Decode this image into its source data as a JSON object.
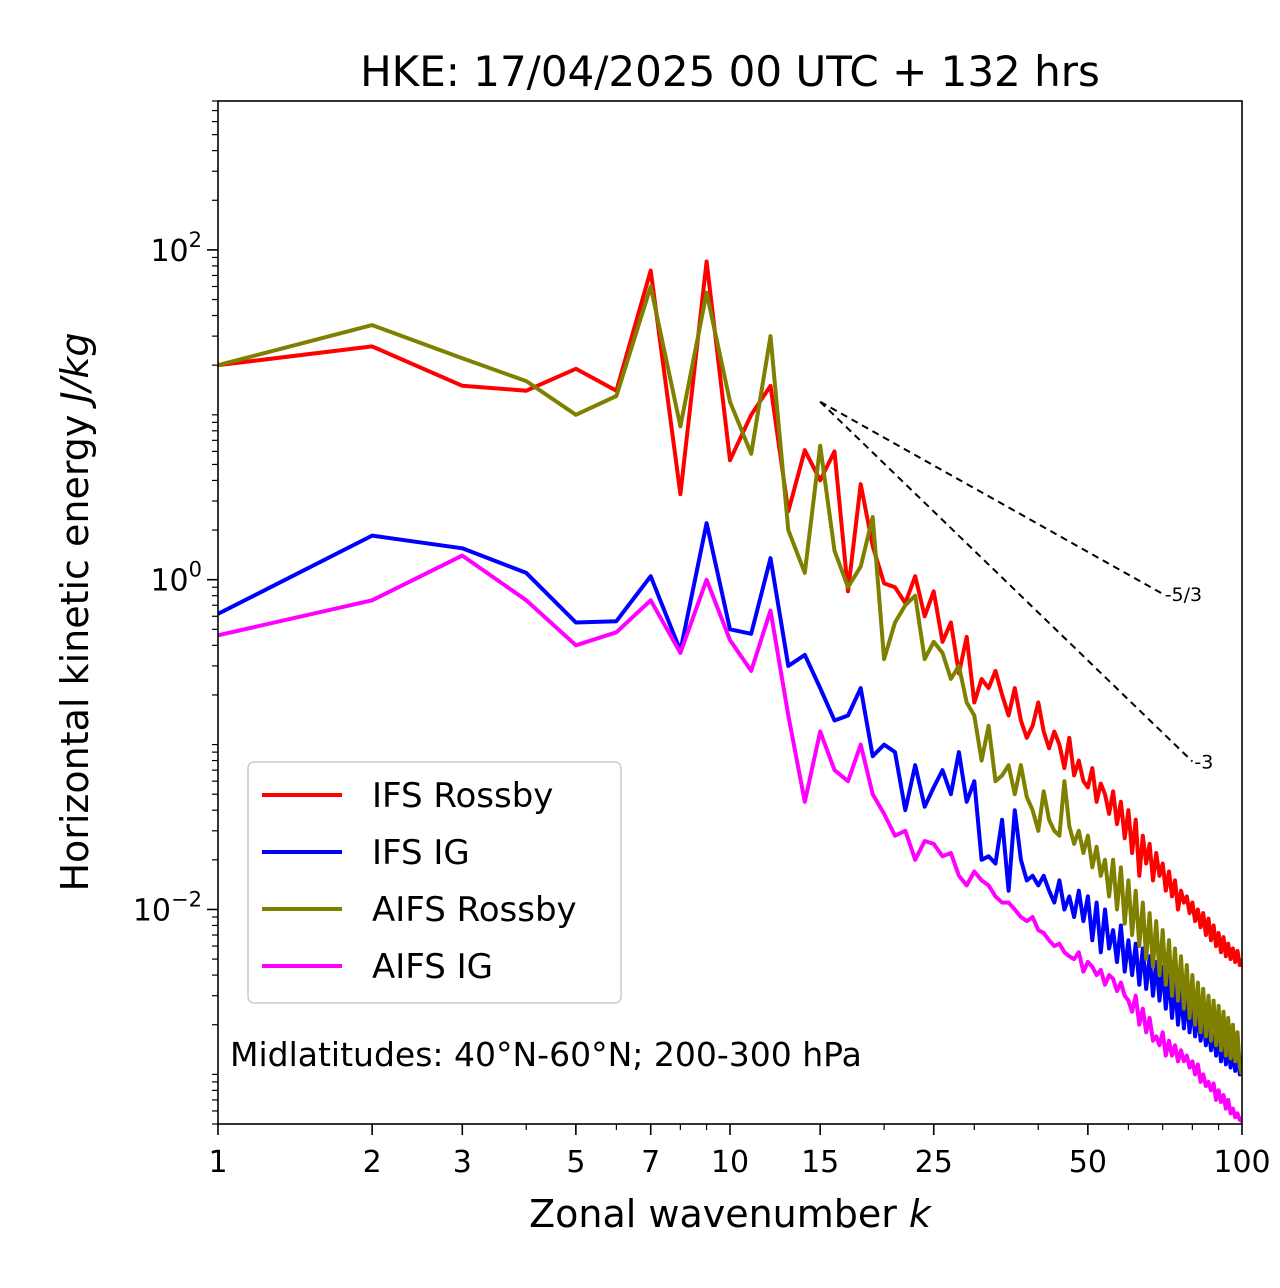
{
  "chart_data": {
    "type": "line",
    "title": "HKE: 17/04/2025 00 UTC + 132 hrs",
    "xlabel": "Zonal wavenumber",
    "xlabel_symbol": "k",
    "ylabel": "Horizontal kinetic energy",
    "ylabel_unit": "J/kg",
    "xscale": "log",
    "yscale": "log",
    "xlim": [
      1,
      100
    ],
    "ylim": [
      0.0005,
      800
    ],
    "xticks": [
      1,
      2,
      3,
      5,
      7,
      10,
      15,
      25,
      50,
      100
    ],
    "xtick_labels": [
      "1",
      "2",
      "3",
      "5",
      "7",
      "10",
      "15",
      "25",
      "50",
      "100"
    ],
    "yticks": [
      0.01,
      1,
      100
    ],
    "ytick_base": "10",
    "ytick_exponents": [
      "−2",
      "0",
      "2"
    ],
    "legend_position": "lower-left",
    "annotation": "Midlatitudes: 40°N-60°N; 200-300 hPa",
    "reference_lines": [
      {
        "label": "-5/3",
        "x": [
          15,
          70
        ],
        "y": [
          12,
          0.82
        ],
        "style": "dashed"
      },
      {
        "label": "-3",
        "x": [
          15,
          80
        ],
        "y": [
          12,
          0.079
        ],
        "style": "dashed"
      }
    ],
    "series": [
      {
        "name": "IFS Rossby",
        "color": "#ff0000",
        "x": [
          1,
          2,
          3,
          4,
          5,
          6,
          7,
          8,
          9,
          10,
          11,
          12,
          13,
          14,
          15,
          16,
          17,
          18,
          19,
          20,
          21,
          22,
          23,
          24,
          25,
          26,
          27,
          28,
          29,
          30,
          31,
          32,
          33,
          34,
          35,
          36,
          37,
          38,
          39,
          40,
          41,
          42,
          43,
          44,
          45,
          46,
          47,
          48,
          49,
          50,
          51,
          52,
          53,
          54,
          55,
          56,
          57,
          58,
          59,
          60,
          61,
          62,
          63,
          64,
          65,
          66,
          67,
          68,
          69,
          70,
          71,
          72,
          73,
          74,
          75,
          76,
          77,
          78,
          79,
          80,
          81,
          82,
          83,
          84,
          85,
          86,
          87,
          88,
          89,
          90,
          91,
          92,
          93,
          94,
          95,
          96,
          97,
          98,
          99,
          100
        ],
        "y": [
          20,
          26,
          15,
          14,
          19,
          14,
          75,
          3.3,
          85,
          5.3,
          10,
          15,
          2.6,
          6.1,
          4.0,
          6.0,
          0.85,
          3.8,
          1.6,
          0.95,
          0.9,
          0.72,
          1.05,
          0.6,
          0.85,
          0.42,
          0.55,
          0.27,
          0.45,
          0.18,
          0.25,
          0.22,
          0.28,
          0.2,
          0.15,
          0.22,
          0.14,
          0.11,
          0.13,
          0.18,
          0.12,
          0.095,
          0.12,
          0.1,
          0.072,
          0.11,
          0.065,
          0.08,
          0.06,
          0.055,
          0.072,
          0.045,
          0.058,
          0.05,
          0.038,
          0.052,
          0.033,
          0.045,
          0.027,
          0.04,
          0.022,
          0.035,
          0.016,
          0.028,
          0.019,
          0.025,
          0.015,
          0.022,
          0.016,
          0.019,
          0.013,
          0.017,
          0.012,
          0.015,
          0.01,
          0.013,
          0.011,
          0.012,
          0.0095,
          0.011,
          0.0085,
          0.01,
          0.0078,
          0.0095,
          0.007,
          0.0088,
          0.0065,
          0.008,
          0.006,
          0.0072,
          0.0055,
          0.0068,
          0.0052,
          0.0062,
          0.005,
          0.0058,
          0.0048,
          0.0056,
          0.0046,
          0.005
        ]
      },
      {
        "name": "IFS IG",
        "color": "#0000ff",
        "x": [
          1,
          2,
          3,
          4,
          5,
          6,
          7,
          8,
          9,
          10,
          11,
          12,
          13,
          14,
          15,
          16,
          17,
          18,
          19,
          20,
          21,
          22,
          23,
          24,
          25,
          26,
          27,
          28,
          29,
          30,
          31,
          32,
          33,
          34,
          35,
          36,
          37,
          38,
          39,
          40,
          41,
          42,
          43,
          44,
          45,
          46,
          47,
          48,
          49,
          50,
          51,
          52,
          53,
          54,
          55,
          56,
          57,
          58,
          59,
          60,
          61,
          62,
          63,
          64,
          65,
          66,
          67,
          68,
          69,
          70,
          71,
          72,
          73,
          74,
          75,
          76,
          77,
          78,
          79,
          80,
          81,
          82,
          83,
          84,
          85,
          86,
          87,
          88,
          89,
          90,
          91,
          92,
          93,
          94,
          95,
          96,
          97,
          98,
          99,
          100
        ],
        "y": [
          0.62,
          1.85,
          1.55,
          1.1,
          0.55,
          0.56,
          1.05,
          0.37,
          2.2,
          0.5,
          0.47,
          1.35,
          0.3,
          0.35,
          0.22,
          0.14,
          0.15,
          0.22,
          0.085,
          0.1,
          0.09,
          0.04,
          0.075,
          0.042,
          0.055,
          0.07,
          0.05,
          0.09,
          0.045,
          0.06,
          0.02,
          0.021,
          0.019,
          0.035,
          0.013,
          0.04,
          0.02,
          0.015,
          0.016,
          0.014,
          0.016,
          0.013,
          0.011,
          0.015,
          0.01,
          0.012,
          0.009,
          0.013,
          0.0085,
          0.012,
          0.0065,
          0.011,
          0.0055,
          0.01,
          0.0058,
          0.0075,
          0.0048,
          0.008,
          0.0042,
          0.0065,
          0.004,
          0.0062,
          0.0035,
          0.0058,
          0.0033,
          0.0052,
          0.003,
          0.0048,
          0.0028,
          0.0045,
          0.0025,
          0.004,
          0.0022,
          0.0036,
          0.002,
          0.0032,
          0.0019,
          0.003,
          0.0018,
          0.0028,
          0.0017,
          0.0024,
          0.0016,
          0.0022,
          0.0015,
          0.002,
          0.0014,
          0.0019,
          0.0013,
          0.0018,
          0.0012,
          0.0017,
          0.00115,
          0.0016,
          0.0011,
          0.0015,
          0.00105,
          0.0014,
          0.001,
          0.0013
        ]
      },
      {
        "name": "AIFS Rossby",
        "color": "#808000",
        "x": [
          1,
          2,
          3,
          4,
          5,
          6,
          7,
          8,
          9,
          10,
          11,
          12,
          13,
          14,
          15,
          16,
          17,
          18,
          19,
          20,
          21,
          22,
          23,
          24,
          25,
          26,
          27,
          28,
          29,
          30,
          31,
          32,
          33,
          34,
          35,
          36,
          37,
          38,
          39,
          40,
          41,
          42,
          43,
          44,
          45,
          46,
          47,
          48,
          49,
          50,
          51,
          52,
          53,
          54,
          55,
          56,
          57,
          58,
          59,
          60,
          61,
          62,
          63,
          64,
          65,
          66,
          67,
          68,
          69,
          70,
          71,
          72,
          73,
          74,
          75,
          76,
          77,
          78,
          79,
          80,
          81,
          82,
          83,
          84,
          85,
          86,
          87,
          88,
          89,
          90,
          91,
          92,
          93,
          94,
          95,
          96,
          97,
          98,
          99,
          100
        ],
        "y": [
          20,
          35,
          22,
          16,
          10,
          13,
          60,
          8.5,
          55,
          12,
          5.8,
          30,
          2.0,
          1.1,
          6.5,
          1.5,
          0.9,
          1.2,
          2.4,
          0.33,
          0.55,
          0.7,
          0.8,
          0.33,
          0.42,
          0.36,
          0.25,
          0.3,
          0.18,
          0.15,
          0.08,
          0.13,
          0.06,
          0.065,
          0.075,
          0.05,
          0.075,
          0.048,
          0.04,
          0.03,
          0.052,
          0.035,
          0.03,
          0.028,
          0.06,
          0.032,
          0.025,
          0.03,
          0.022,
          0.028,
          0.018,
          0.024,
          0.016,
          0.02,
          0.012,
          0.02,
          0.01,
          0.018,
          0.0082,
          0.015,
          0.007,
          0.013,
          0.006,
          0.011,
          0.005,
          0.0095,
          0.0045,
          0.0085,
          0.004,
          0.0075,
          0.0035,
          0.0065,
          0.003,
          0.0058,
          0.0028,
          0.0052,
          0.0025,
          0.0046,
          0.0022,
          0.004,
          0.002,
          0.0036,
          0.0018,
          0.0033,
          0.0017,
          0.003,
          0.0016,
          0.0028,
          0.0015,
          0.0026,
          0.0014,
          0.0024,
          0.0013,
          0.0022,
          0.00125,
          0.002,
          0.0012,
          0.0018,
          0.0011,
          0.001
        ]
      },
      {
        "name": "AIFS IG",
        "color": "#ff00ff",
        "x": [
          1,
          2,
          3,
          4,
          5,
          6,
          7,
          8,
          9,
          10,
          11,
          12,
          13,
          14,
          15,
          16,
          17,
          18,
          19,
          20,
          21,
          22,
          23,
          24,
          25,
          26,
          27,
          28,
          29,
          30,
          31,
          32,
          33,
          34,
          35,
          36,
          37,
          38,
          39,
          40,
          41,
          42,
          43,
          44,
          45,
          46,
          47,
          48,
          49,
          50,
          51,
          52,
          53,
          54,
          55,
          56,
          57,
          58,
          59,
          60,
          61,
          62,
          63,
          64,
          65,
          66,
          67,
          68,
          69,
          70,
          71,
          72,
          73,
          74,
          75,
          76,
          77,
          78,
          79,
          80,
          81,
          82,
          83,
          84,
          85,
          86,
          87,
          88,
          89,
          90,
          91,
          92,
          93,
          94,
          95,
          96,
          97,
          98,
          99,
          100
        ],
        "y": [
          0.46,
          0.75,
          1.4,
          0.75,
          0.4,
          0.48,
          0.75,
          0.36,
          1.0,
          0.43,
          0.28,
          0.65,
          0.15,
          0.045,
          0.12,
          0.07,
          0.06,
          0.1,
          0.05,
          0.038,
          0.028,
          0.03,
          0.02,
          0.026,
          0.025,
          0.021,
          0.022,
          0.016,
          0.014,
          0.017,
          0.015,
          0.014,
          0.012,
          0.011,
          0.011,
          0.01,
          0.009,
          0.0085,
          0.009,
          0.0075,
          0.0072,
          0.0065,
          0.006,
          0.0062,
          0.0055,
          0.0052,
          0.005,
          0.0055,
          0.0042,
          0.0048,
          0.0045,
          0.004,
          0.0043,
          0.0035,
          0.004,
          0.0038,
          0.0032,
          0.0036,
          0.003,
          0.0028,
          0.0024,
          0.003,
          0.002,
          0.0025,
          0.0018,
          0.0022,
          0.0016,
          0.0017,
          0.0015,
          0.0018,
          0.0013,
          0.0016,
          0.0013,
          0.0015,
          0.0012,
          0.0014,
          0.0012,
          0.0013,
          0.0011,
          0.0012,
          0.001,
          0.00115,
          0.0009,
          0.001,
          0.00085,
          0.0009,
          0.0008,
          0.00088,
          0.0007,
          0.0008,
          0.00068,
          0.00075,
          0.00062,
          0.0007,
          0.00058,
          0.00062,
          0.00055,
          0.00058,
          0.00053,
          0.00052
        ]
      }
    ]
  }
}
